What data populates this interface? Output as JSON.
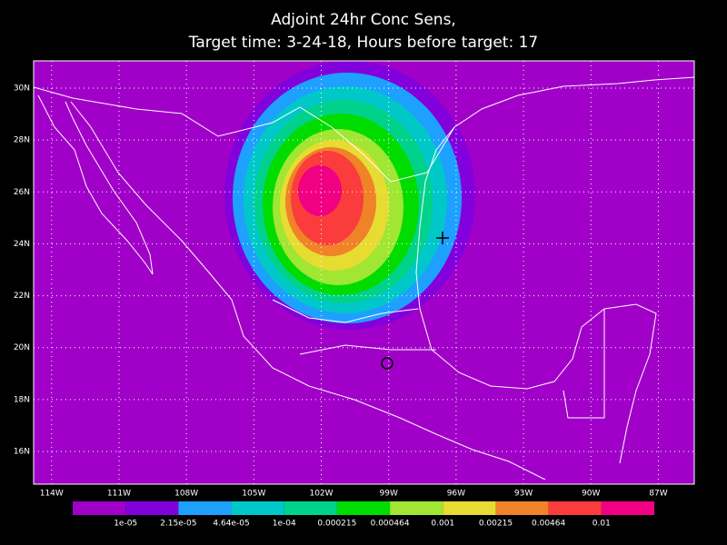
{
  "title": [
    "Adjoint 24hr Conc Sens,",
    "Target time: 3-24-18, Hours before target: 17"
  ],
  "map": {
    "lonlim": [
      -114.8,
      -85.4
    ],
    "latlim": [
      14.74,
      31.05
    ],
    "lon_ticks": [
      {
        "value": -114,
        "label": "114W"
      },
      {
        "value": -111,
        "label": "111W"
      },
      {
        "value": -108,
        "label": "108W"
      },
      {
        "value": -105,
        "label": "105W"
      },
      {
        "value": -102,
        "label": "102W"
      },
      {
        "value": -99,
        "label": "99W"
      },
      {
        "value": -96,
        "label": "96W"
      },
      {
        "value": -93,
        "label": "93W"
      },
      {
        "value": -90,
        "label": "90W"
      },
      {
        "value": -87,
        "label": "87W"
      }
    ],
    "lat_ticks": [
      {
        "value": 16,
        "label": "16N"
      },
      {
        "value": 18,
        "label": "18N"
      },
      {
        "value": 20,
        "label": "20N"
      },
      {
        "value": 22,
        "label": "22N"
      },
      {
        "value": 24,
        "label": "24N"
      },
      {
        "value": 26,
        "label": "26N"
      },
      {
        "value": 28,
        "label": "28N"
      },
      {
        "value": 30,
        "label": "30N"
      }
    ],
    "grid": true
  },
  "colorbar": {
    "colors": [
      "#a000c8",
      "#8200dc",
      "#1ea0ff",
      "#00c8c8",
      "#00d28c",
      "#00dc00",
      "#a0e632",
      "#e6dc32",
      "#f08228",
      "#fa3c3c",
      "#f00082"
    ],
    "labels": [
      "1e-05",
      "2.15e-05",
      "4.64e-05",
      "1e-04",
      "0.000215",
      "0.000464",
      "0.001",
      "0.00215",
      "0.00464",
      "0.01"
    ]
  }
}
